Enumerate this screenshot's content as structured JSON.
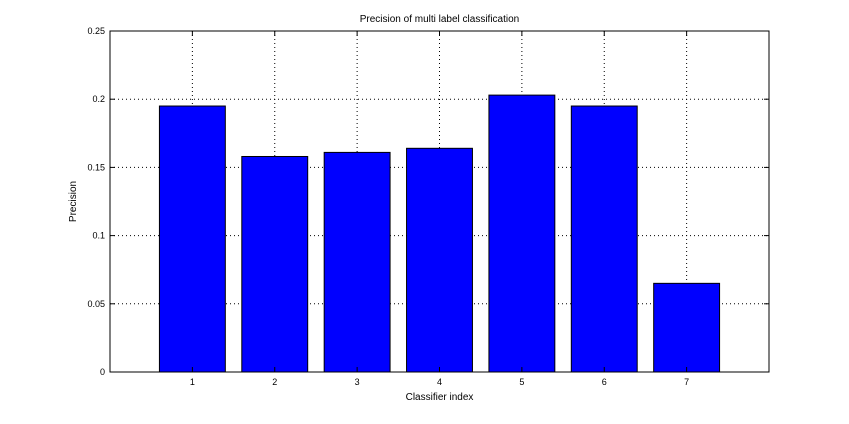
{
  "chart_data": {
    "type": "bar",
    "title": "Precision of multi label classification",
    "xlabel": "Classifier index",
    "ylabel": "Precision",
    "categories": [
      "1",
      "2",
      "3",
      "4",
      "5",
      "6",
      "7"
    ],
    "values": [
      0.195,
      0.158,
      0.161,
      0.164,
      0.203,
      0.195,
      0.065
    ],
    "ylim": [
      0,
      0.25
    ],
    "xlim": [
      0,
      8
    ],
    "yticks": [
      "0",
      "0.05",
      "0.1",
      "0.15",
      "0.2",
      "0.25"
    ],
    "grid": true,
    "bar_color": "#0000ff"
  }
}
